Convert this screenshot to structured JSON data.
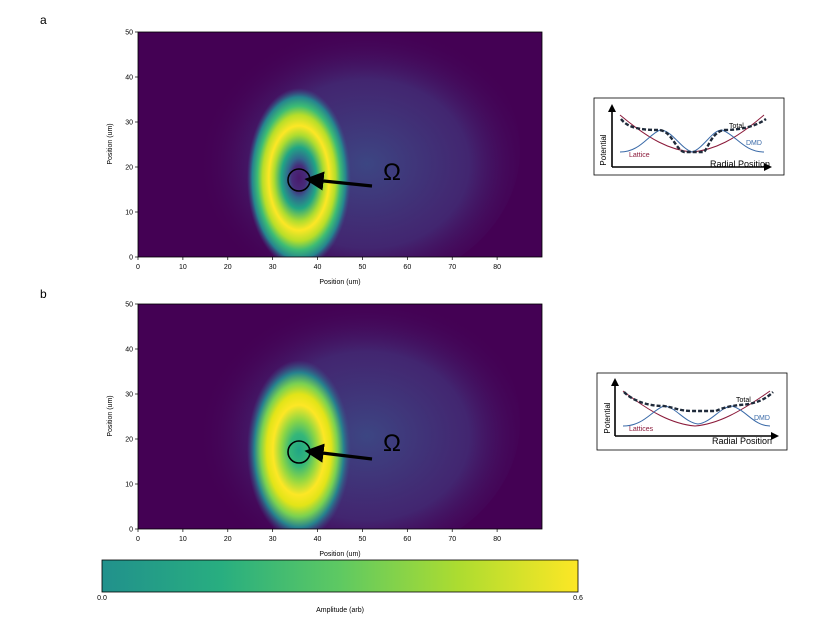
{
  "chart_data": [
    {
      "type": "heatmap",
      "panel_label": "a",
      "xlabel": "Position (um)",
      "ylabel": "Position (um)",
      "xlim": [
        0,
        90
      ],
      "ylim": [
        0,
        50
      ],
      "xticks": [
        "0",
        "10",
        "20",
        "30",
        "40",
        "50",
        "60",
        "70",
        "80"
      ],
      "yticks": [
        "0",
        "10",
        "20",
        "30",
        "40",
        "50"
      ],
      "ring": {
        "center_x": 36,
        "center_y": 18,
        "semi_axis_x": 11.5,
        "semi_axis_y": 15,
        "hole_radius": 3.5
      },
      "annotation": {
        "label": "Ω",
        "circle_center": [
          36,
          17.5
        ],
        "circle_radius": 2.5,
        "arrow_from": [
          52,
          15.5
        ],
        "arrow_to": [
          38,
          17.5
        ]
      },
      "inset": {
        "ylabel": "Potential",
        "xlabel": "Radial Position",
        "labels": {
          "total": "Total",
          "dmd": "DMD",
          "lattice": "Lattice"
        }
      }
    },
    {
      "type": "heatmap",
      "panel_label": "b",
      "xlabel": "Position (um)",
      "ylabel": "Position (um)",
      "xlim": [
        0,
        90
      ],
      "ylim": [
        0,
        50
      ],
      "xticks": [
        "0",
        "10",
        "20",
        "30",
        "40",
        "50",
        "60",
        "70",
        "80"
      ],
      "yticks": [
        "0",
        "10",
        "20",
        "30",
        "40",
        "50"
      ],
      "ring": {
        "center_x": 36,
        "center_y": 18,
        "semi_axis_x": 11.5,
        "semi_axis_y": 15,
        "hole_radius": 0
      },
      "annotation": {
        "label": "Ω",
        "circle_center": [
          36,
          17
        ],
        "circle_radius": 2.5,
        "arrow_from": [
          52,
          15.5
        ],
        "arrow_to": [
          38,
          17
        ]
      },
      "inset": {
        "ylabel": "Potential",
        "xlabel": "Radial Position",
        "labels": {
          "total": "Total",
          "dmd": "DMD",
          "lattice": "Lattices"
        }
      }
    }
  ],
  "colorbar": {
    "label": "Amplitude (arb)",
    "min_label": "0.0",
    "max_label": "0.6",
    "range": [
      0.0,
      0.6
    ],
    "colors": [
      "#21918c",
      "#28ae80",
      "#5ec962",
      "#addc30",
      "#fde725"
    ]
  },
  "colors": {
    "background": "#440154",
    "ring": "#fde725",
    "arrow": "#000000",
    "inset_total": "#1f2a3a",
    "inset_dmd": "#3a6aa8",
    "inset_lattice": "#8b1a3a"
  }
}
